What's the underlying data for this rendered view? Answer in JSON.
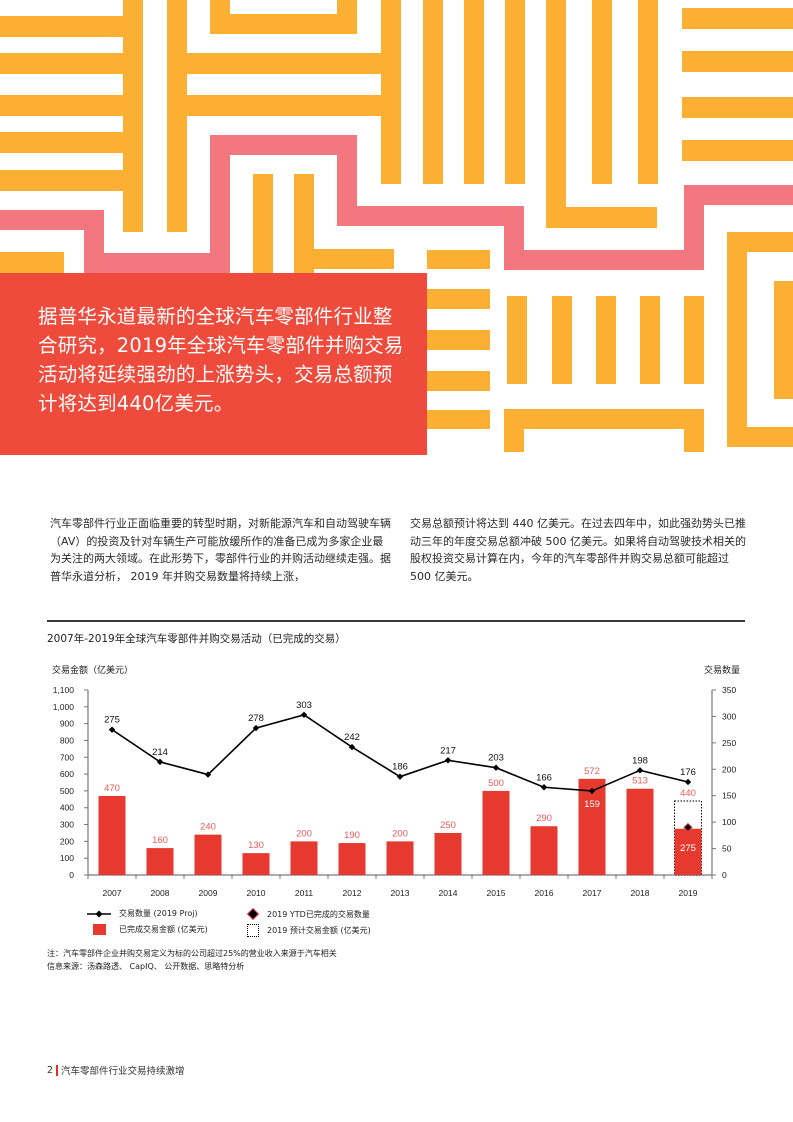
{
  "colors": {
    "orange": "#fbb034",
    "pink": "#f2777f",
    "red_box": "#ee4b3c",
    "bar_red": "#e63a2e",
    "bar_label": "#f05a5a",
    "line": "#000000"
  },
  "hero": {
    "text": "据普华永道最新的全球汽车零部件行业整合研究，2019年全球汽车零部件并购交易活动将延续强劲的上涨势头，交易总额预计将达到440亿美元。"
  },
  "body": {
    "left": "汽车零部件行业正面临重要的转型时期，对新能源汽车和自动驾驶车辆 （AV）的投资及针对车辆生产可能放缓所作的准备已成为多家企业最为关注的两大领域。在此形势下，零部件行业的并购活动继续走强。据普华永道分析， 2019 年并购交易数量将持续上涨，",
    "right": "交易总额预计将达到 440 亿美元。在过去四年中，如此强劲势头已推动三年的年度交易总额冲破 500 亿美元。如果将自动驾驶技术相关的股权投资交易计算在内，今年的汽车零部件并购交易总额可能超过 500 亿美元。"
  },
  "chart_data": {
    "type": "bar",
    "title": "2007年-2019年全球汽车零部件并购交易活动（已完成的交易）",
    "categories": [
      "2007",
      "2008",
      "2009",
      "2010",
      "2011",
      "2012",
      "2013",
      "2014",
      "2015",
      "2016",
      "2017",
      "2018",
      "2019"
    ],
    "ylabel_left": "交易金额（亿美元）",
    "ylabel_right": "交易数量",
    "ylim_left": [
      0,
      1100
    ],
    "yticks_left": [
      "0",
      "100",
      "200",
      "300",
      "400",
      "500",
      "600",
      "700",
      "800",
      "900",
      "1,000",
      "1,100"
    ],
    "ylim_right": [
      0,
      350
    ],
    "yticks_right": [
      "0",
      "50",
      "100",
      "150",
      "200",
      "250",
      "300",
      "350"
    ],
    "series": [
      {
        "name": "已完成交易金额 (亿美元)",
        "type": "bar",
        "axis": "left",
        "values": [
          470,
          160,
          240,
          130,
          200,
          190,
          200,
          250,
          500,
          290,
          572,
          513,
          275
        ],
        "labels": [
          "470",
          "160",
          "240",
          "130",
          "200",
          "190",
          "200",
          "250",
          "500",
          "290",
          "572",
          "513",
          "275"
        ]
      },
      {
        "name": "交易数量 (2019 Proj)",
        "type": "line",
        "axis": "right",
        "values": [
          275,
          214,
          190,
          278,
          303,
          242,
          186,
          217,
          203,
          166,
          159,
          198,
          176
        ],
        "labels": [
          "275",
          "214",
          "",
          "278",
          "303",
          "242",
          "186",
          "217",
          "203",
          "166",
          "159",
          "198",
          "176"
        ]
      },
      {
        "name": "2019 预计交易金额 (亿美元)",
        "type": "bar-outline",
        "axis": "left",
        "category": "2019",
        "value": 440,
        "label": "440"
      },
      {
        "name": "2019 YTD已完成的交易数量",
        "type": "marker",
        "axis": "right",
        "category": "2019",
        "value": 90
      }
    ],
    "legend_position": "bottom"
  },
  "legend": {
    "line": "交易数量 (2019 Proj)",
    "bar": "已完成交易金额 (亿美元)",
    "diamond": "2019 YTD已完成的交易数量",
    "dotted": "2019 预计交易金额 (亿美元)"
  },
  "notes": {
    "note": "注：汽车零部件企业并购交易定义为标的公司超过25%的营业收入来源于汽车相关",
    "source": "信息来源：汤森路透、 CapIQ、 公开数据、思略特分析"
  },
  "footer": {
    "page": "2",
    "title": "汽车零部件行业交易持续激增"
  }
}
